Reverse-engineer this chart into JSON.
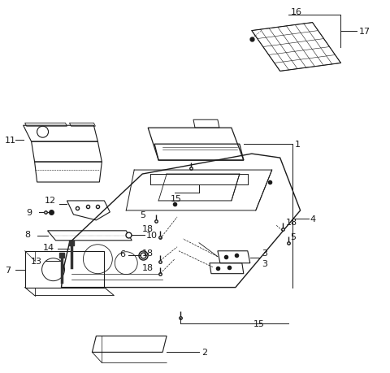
{
  "bg_color": "#ffffff",
  "lc": "#1a1a1a",
  "figsize": [
    4.8,
    4.6
  ],
  "dpi": 100
}
